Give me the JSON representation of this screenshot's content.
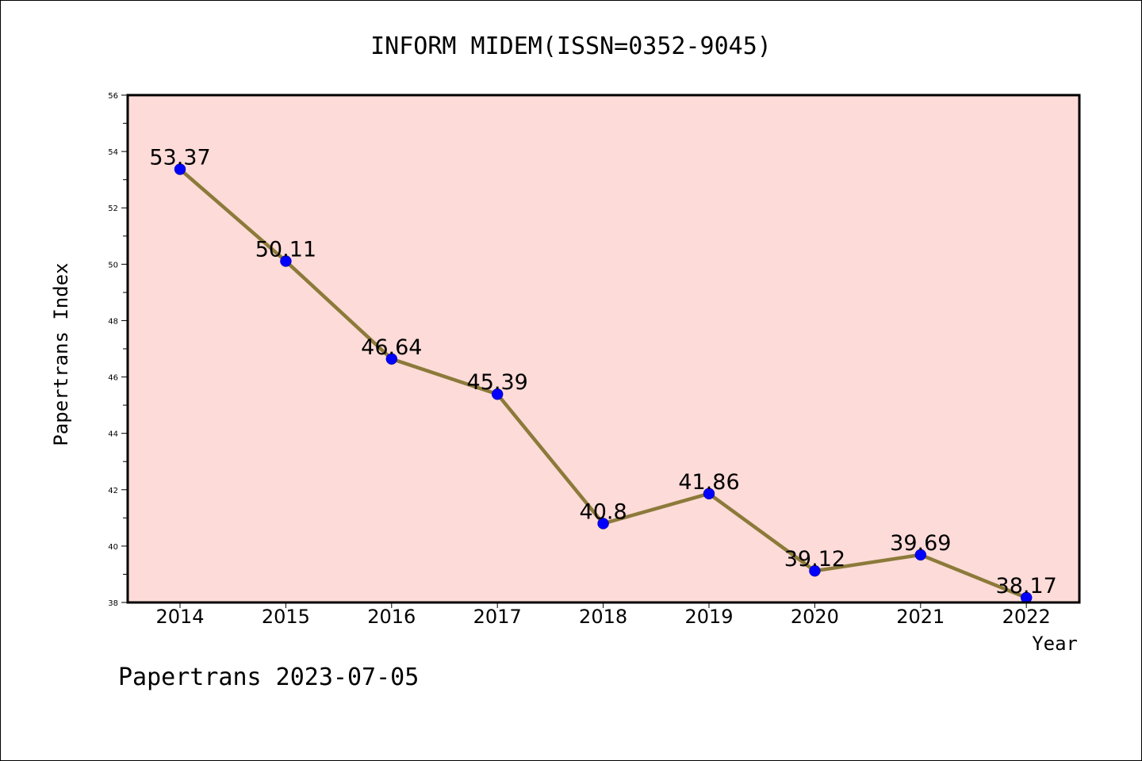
{
  "chart_data": {
    "type": "line",
    "title": "INFORM MIDEM(ISSN=0352-9045)",
    "xlabel": "Year",
    "ylabel": "Papertrans Index",
    "categories": [
      "2014",
      "2015",
      "2016",
      "2017",
      "2018",
      "2019",
      "2020",
      "2021",
      "2022"
    ],
    "values": [
      53.37,
      50.11,
      46.64,
      45.39,
      40.8,
      41.86,
      39.12,
      39.69,
      38.17
    ],
    "value_labels": [
      "53.37",
      "50.11",
      "46.64",
      "45.39",
      "40.8",
      "41.86",
      "39.12",
      "39.69",
      "38.17"
    ],
    "ylim": [
      38,
      56
    ],
    "yticks": [
      "38",
      "40",
      "42",
      "44",
      "46",
      "48",
      "50",
      "52",
      "54",
      "56"
    ],
    "grid": false,
    "legend": "none",
    "colors": {
      "plot_background": "#fddbd8",
      "line": "#8c7a3a",
      "marker": "#0000ff",
      "frame": "#000000"
    }
  },
  "footer": {
    "text": "Papertrans 2023-07-05"
  }
}
